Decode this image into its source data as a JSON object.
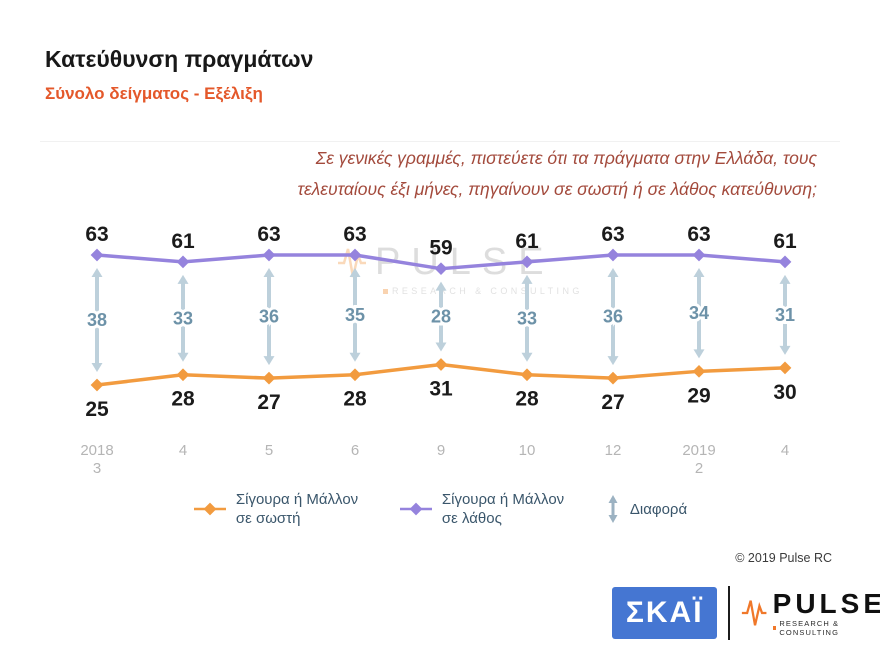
{
  "header": {
    "title": "Κατεύθυνση πραγμάτων",
    "subtitle": "Σύνολο δείγματος - Εξέλιξη"
  },
  "question": {
    "lines": [
      "Σε γενικές γραμμές, πιστεύετε ότι τα πράγματα στην Ελλάδα, τους",
      "τελευταίους έξι μήνες, πηγαίνουν σε σωστή ή σε λάθος κατεύθυνση;"
    ]
  },
  "chart_data": {
    "type": "line",
    "title": "Κατεύθυνση πραγμάτων",
    "xlabel": "",
    "ylabel": "",
    "ylim": [
      20,
      70
    ],
    "grid": false,
    "legend_position": "bottom",
    "categories": [
      "2018|3",
      "4",
      "5",
      "6",
      "9",
      "10",
      "12",
      "2019|2",
      "4"
    ],
    "series": [
      {
        "name": "Σίγουρα ή Μάλλον σε σωστή",
        "color": "#f29b3f",
        "values": [
          25,
          28,
          27,
          28,
          31,
          28,
          27,
          29,
          30
        ]
      },
      {
        "name": "Σίγουρα ή Μάλλον σε λάθος",
        "color": "#9583dd",
        "values": [
          63,
          61,
          63,
          63,
          59,
          61,
          63,
          63,
          61
        ]
      }
    ],
    "difference": {
      "name": "Διαφορά",
      "values": [
        38,
        33,
        36,
        35,
        28,
        33,
        36,
        34,
        31
      ]
    },
    "colors": {
      "arrow": "#bdd0db",
      "diff_text": "#6d92a8",
      "axis_text": "#b5b5b5",
      "value_label": "#1b1b1b"
    }
  },
  "watermark": {
    "text": "PULSE",
    "subtext": "RESEARCH & CONSULTING"
  },
  "footer": {
    "copyright": "© 2019 Pulse RC"
  },
  "logos": {
    "skai": "ΣΚΑΪ",
    "pulse": "PULSE",
    "pulse_sub": "RESEARCH & CONSULTING"
  }
}
